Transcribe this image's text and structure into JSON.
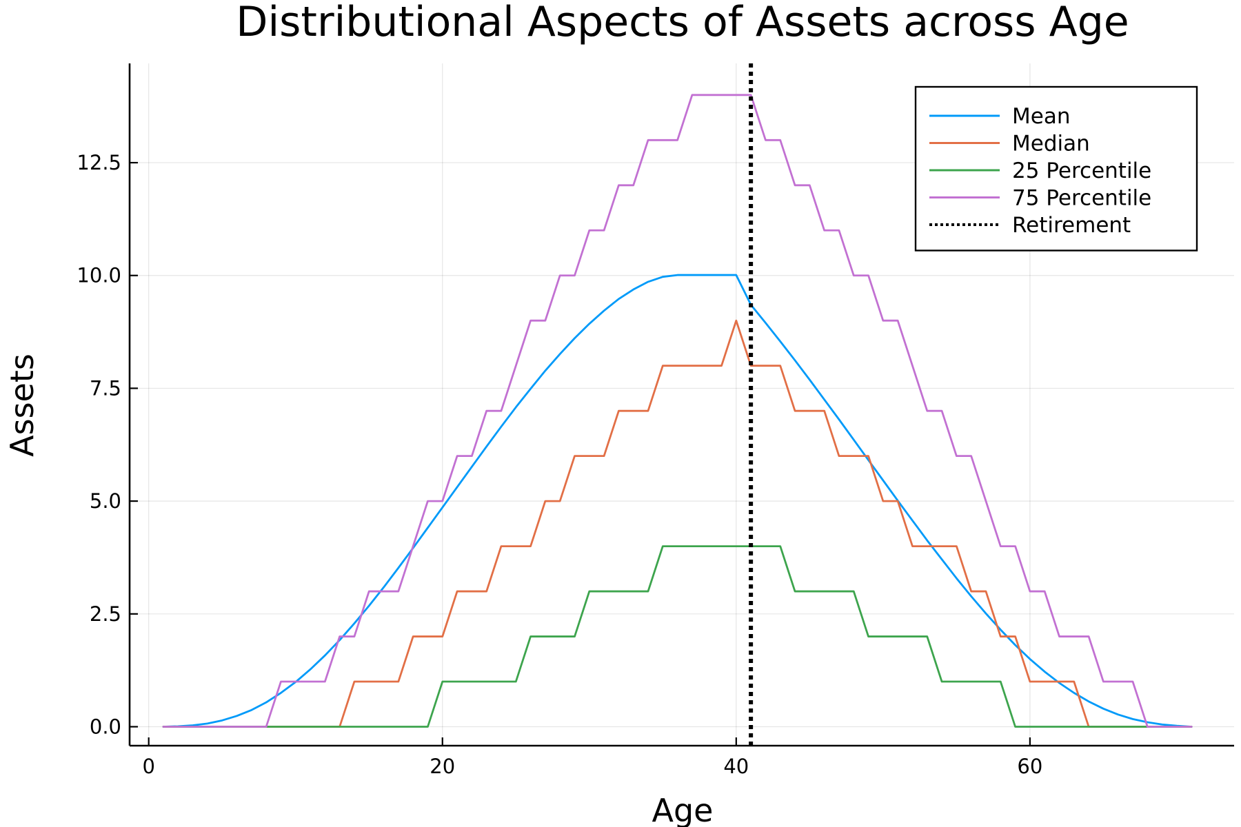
{
  "chart_data": {
    "type": "line",
    "title": "Distributional Aspects of Assets across Age",
    "xlabel": "Age",
    "ylabel": "Assets",
    "xlim": [
      -1.3,
      73.9
    ],
    "ylim": [
      -0.42,
      14.7
    ],
    "xticks": [
      0,
      20,
      40,
      60
    ],
    "xtick_labels": [
      "0",
      "20",
      "40",
      "60"
    ],
    "yticks": [
      0,
      2.5,
      5,
      7.5,
      10,
      12.5
    ],
    "ytick_labels": [
      "0.0",
      "2.5",
      "5.0",
      "7.5",
      "10.0",
      "12.5"
    ],
    "grid": true,
    "legend_position": "top-right",
    "series": [
      {
        "name": "Mean",
        "color": "#009af9",
        "style": "solid",
        "x": [
          1,
          2,
          3,
          4,
          5,
          6,
          7,
          8,
          9,
          10,
          11,
          12,
          13,
          14,
          15,
          16,
          17,
          18,
          19,
          20,
          21,
          22,
          23,
          24,
          25,
          26,
          27,
          28,
          29,
          30,
          31,
          32,
          33,
          34,
          35,
          36,
          37,
          38,
          39,
          40,
          41,
          42,
          43,
          44,
          45,
          46,
          47,
          48,
          49,
          50,
          51,
          52,
          53,
          54,
          55,
          56,
          57,
          58,
          59,
          60,
          61,
          62,
          63,
          64,
          65,
          66,
          67,
          68,
          69,
          70,
          71
        ],
        "y": [
          0.0,
          0.01,
          0.03,
          0.07,
          0.14,
          0.24,
          0.37,
          0.54,
          0.75,
          0.99,
          1.27,
          1.58,
          1.92,
          2.29,
          2.68,
          3.09,
          3.52,
          3.96,
          4.41,
          4.86,
          5.31,
          5.76,
          6.21,
          6.65,
          7.08,
          7.49,
          7.89,
          8.26,
          8.61,
          8.93,
          9.22,
          9.48,
          9.69,
          9.86,
          9.97,
          10.01,
          10.01,
          10.01,
          10.01,
          10.01,
          9.35,
          8.95,
          8.54,
          8.12,
          7.69,
          7.25,
          6.81,
          6.36,
          5.91,
          5.46,
          5.01,
          4.57,
          4.13,
          3.71,
          3.29,
          2.89,
          2.51,
          2.15,
          1.81,
          1.5,
          1.22,
          0.97,
          0.75,
          0.56,
          0.4,
          0.27,
          0.17,
          0.1,
          0.05,
          0.02,
          0.0
        ]
      },
      {
        "name": "Median",
        "color": "#e26f46",
        "style": "solid",
        "x": [
          1,
          13,
          14,
          17,
          18,
          20,
          21,
          23,
          24,
          26,
          27,
          28,
          29,
          31,
          32,
          34,
          35,
          39,
          40,
          41,
          43,
          44,
          46,
          47,
          49,
          50,
          51,
          52,
          53,
          55,
          56,
          57,
          58,
          59,
          60,
          63,
          64,
          71
        ],
        "y": [
          0,
          0,
          1,
          1,
          2,
          2,
          3,
          3,
          4,
          4,
          5,
          5,
          6,
          6,
          7,
          7,
          8,
          8,
          9,
          8,
          8,
          7,
          7,
          6,
          6,
          5,
          5,
          4,
          4,
          4,
          3,
          3,
          2,
          2,
          1,
          1,
          0,
          0
        ]
      },
      {
        "name": "25 Percentile",
        "color": "#3da44d",
        "style": "solid",
        "x": [
          1,
          19,
          20,
          25,
          26,
          29,
          30,
          34,
          35,
          43,
          44,
          48,
          49,
          53,
          54,
          58,
          59,
          71
        ],
        "y": [
          0,
          0,
          1,
          1,
          2,
          2,
          3,
          3,
          4,
          4,
          3,
          3,
          2,
          2,
          1,
          1,
          0,
          0
        ]
      },
      {
        "name": "75 Percentile",
        "color": "#c271d2",
        "style": "solid",
        "x": [
          1,
          8,
          9,
          12,
          13,
          14,
          15,
          17,
          18,
          19,
          20,
          21,
          22,
          23,
          24,
          25,
          26,
          27,
          28,
          29,
          30,
          31,
          32,
          33,
          34,
          35,
          36,
          37,
          40,
          41,
          42,
          43,
          44,
          45,
          46,
          47,
          48,
          49,
          50,
          51,
          52,
          53,
          54,
          55,
          56,
          57,
          58,
          59,
          60,
          61,
          62,
          63,
          64,
          65,
          66,
          67,
          68,
          71
        ],
        "y": [
          0,
          0,
          1,
          1,
          2,
          2,
          3,
          3,
          4,
          5,
          5,
          6,
          6,
          7,
          7,
          8,
          9,
          9,
          10,
          10,
          11,
          11,
          12,
          12,
          13,
          13,
          13,
          14,
          14,
          14,
          13,
          13,
          12,
          12,
          11,
          11,
          10,
          10,
          9,
          9,
          8,
          7,
          7,
          6,
          6,
          5,
          4,
          4,
          3,
          3,
          2,
          2,
          2,
          1,
          1,
          1,
          0,
          0
        ]
      }
    ],
    "vlines": [
      {
        "name": "Retirement",
        "x": 41,
        "color": "#000000",
        "style": "dotted"
      }
    ]
  }
}
